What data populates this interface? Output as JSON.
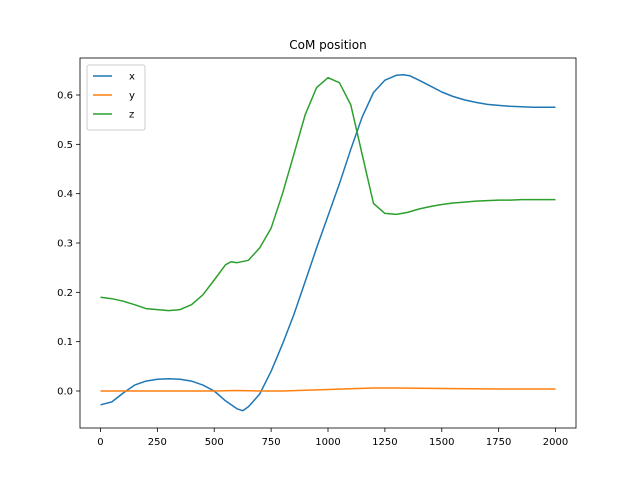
{
  "chart_data": {
    "type": "line",
    "title": "CoM position",
    "xlabel": "",
    "ylabel": "",
    "xlim": [
      -90,
      2090
    ],
    "ylim": [
      -0.075,
      0.675
    ],
    "x_ticks": [
      0,
      250,
      500,
      750,
      1000,
      1250,
      1500,
      1750,
      2000
    ],
    "x_tick_labels": [
      "0",
      "250",
      "500",
      "750",
      "1000",
      "1250",
      "1500",
      "1750",
      "2000"
    ],
    "y_ticks": [
      0.0,
      0.1,
      0.2,
      0.3,
      0.4,
      0.5,
      0.6
    ],
    "y_tick_labels": [
      "0.0",
      "0.1",
      "0.2",
      "0.3",
      "0.4",
      "0.5",
      "0.6"
    ],
    "grid": false,
    "legend_position": "top-left",
    "series": [
      {
        "name": "x",
        "color": "#1f77b4",
        "x": [
          0,
          50,
          100,
          150,
          200,
          250,
          300,
          350,
          400,
          450,
          500,
          550,
          600,
          625,
          650,
          700,
          750,
          800,
          850,
          900,
          950,
          1000,
          1050,
          1100,
          1150,
          1200,
          1250,
          1300,
          1330,
          1360,
          1400,
          1450,
          1500,
          1550,
          1600,
          1650,
          1700,
          1750,
          1800,
          1850,
          1900,
          1950,
          2000
        ],
        "values": [
          -0.028,
          -0.022,
          -0.004,
          0.012,
          0.02,
          0.024,
          0.025,
          0.024,
          0.02,
          0.012,
          0.0,
          -0.02,
          -0.036,
          -0.04,
          -0.032,
          -0.006,
          0.04,
          0.095,
          0.155,
          0.222,
          0.29,
          0.355,
          0.42,
          0.49,
          0.555,
          0.605,
          0.63,
          0.64,
          0.641,
          0.639,
          0.63,
          0.618,
          0.606,
          0.597,
          0.59,
          0.585,
          0.581,
          0.579,
          0.577,
          0.576,
          0.575,
          0.575,
          0.575
        ]
      },
      {
        "name": "y",
        "color": "#ff7f0e",
        "x": [
          0,
          250,
          500,
          600,
          700,
          800,
          1000,
          1200,
          1300,
          1500,
          1750,
          2000
        ],
        "values": [
          0.0,
          0.0,
          0.0,
          0.001,
          0.0,
          0.0,
          0.003,
          0.006,
          0.006,
          0.005,
          0.004,
          0.004
        ]
      },
      {
        "name": "z",
        "color": "#2ca02c",
        "x": [
          0,
          50,
          100,
          150,
          200,
          250,
          300,
          350,
          400,
          450,
          500,
          550,
          575,
          600,
          650,
          700,
          750,
          800,
          850,
          900,
          950,
          1000,
          1050,
          1100,
          1150,
          1200,
          1250,
          1300,
          1350,
          1400,
          1450,
          1500,
          1550,
          1600,
          1650,
          1700,
          1750,
          1800,
          1850,
          1900,
          1950,
          2000
        ],
        "values": [
          0.19,
          0.187,
          0.182,
          0.175,
          0.167,
          0.165,
          0.163,
          0.165,
          0.175,
          0.195,
          0.225,
          0.256,
          0.262,
          0.26,
          0.265,
          0.29,
          0.33,
          0.4,
          0.48,
          0.56,
          0.615,
          0.635,
          0.625,
          0.58,
          0.48,
          0.38,
          0.36,
          0.358,
          0.362,
          0.369,
          0.374,
          0.378,
          0.381,
          0.383,
          0.385,
          0.386,
          0.387,
          0.387,
          0.388,
          0.388,
          0.388,
          0.388
        ]
      }
    ]
  }
}
